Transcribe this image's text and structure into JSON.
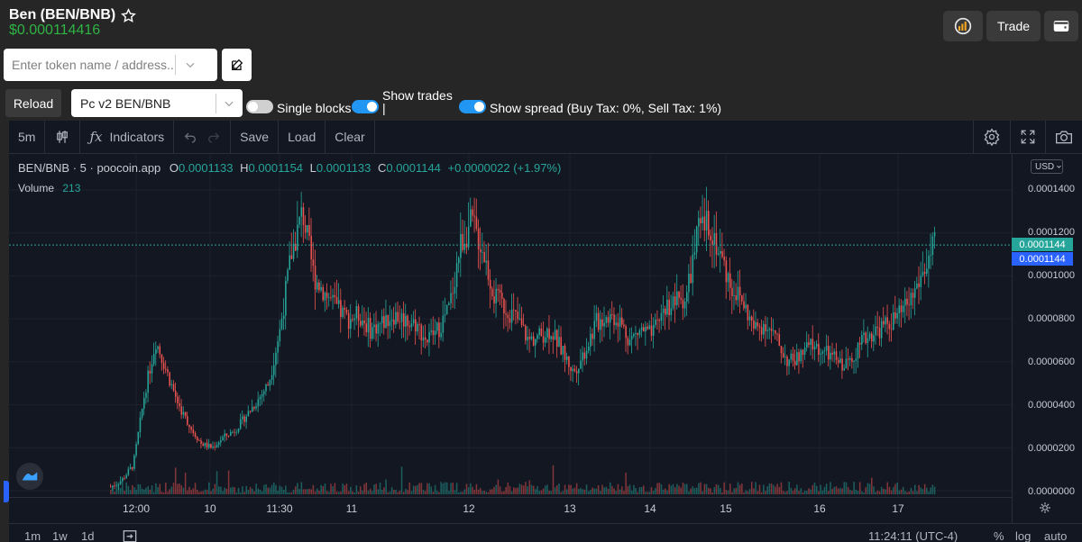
{
  "header": {
    "title": "Ben (BEN/BNB)",
    "price": "$0.000114416",
    "trade_label": "Trade"
  },
  "search": {
    "placeholder": "Enter token name / address..."
  },
  "controls": {
    "reload_label": "Reload",
    "pool_value": "Pc v2 BEN/BNB",
    "single_blocks_label": "Single blocks",
    "single_blocks_on": false,
    "show_trades_label": "Show trades",
    "show_trades_suffix": "|",
    "show_trades_on": true,
    "show_spread_label": "Show spread (Buy Tax: 0%, Sell Tax: 1%)",
    "show_spread_on": true
  },
  "toolbar": {
    "interval": "5m",
    "indicators_label": "Indicators",
    "save_label": "Save",
    "load_label": "Load",
    "clear_label": "Clear"
  },
  "legend": {
    "symbol": "BEN/BNB",
    "interval": "5",
    "source": "poocoin.app",
    "o_label": "O",
    "o": "0.0001133",
    "h_label": "H",
    "h": "0.0001154",
    "l_label": "L",
    "l": "0.0001133",
    "c_label": "C",
    "c": "0.0001144",
    "change": "+0.0000022 (+1.97%)",
    "volume_label": "Volume",
    "volume": "213"
  },
  "currency": "USD",
  "price_tags": [
    "0.0001144",
    "0.0001144"
  ],
  "bottom_bar": {
    "ranges": [
      "1m",
      "1w",
      "1d"
    ],
    "time": "11:24:11 (UTC-4)",
    "pct": "%",
    "log": "log",
    "auto": "auto"
  },
  "colors": {
    "up": "#26a69a",
    "down": "#ef5350",
    "price_positive": "#2fb344",
    "toggle_on": "#2196f3",
    "tag_green": "#26a69a",
    "tag_blue": "#2962ff"
  },
  "chart_data": {
    "type": "candlestick",
    "x_ticks": [
      "12:00",
      "10",
      "11:30",
      "11",
      "12",
      "13",
      "14",
      "15",
      "16",
      "17"
    ],
    "y_ticks": [
      "0.0001400",
      "0.0001200",
      "0.0001000",
      "0.0000800",
      "0.0000600",
      "0.0000400",
      "0.0000200",
      "0.0000000"
    ],
    "ylim": [
      0,
      0.00014
    ],
    "last_price": 0.0001144,
    "price_series": [
      1.8e-06,
      5e-06,
      1.2e-05,
      4.5e-05,
      7e-05,
      5.5e-05,
      4e-05,
      3e-05,
      2.2e-05,
      2e-05,
      2.5e-05,
      2.8e-05,
      3.5e-05,
      4.2e-05,
      5e-05,
      7.5e-05,
      0.00011,
      0.00013,
      0.0001,
      9.2e-05,
      8.5e-05,
      8e-05,
      8.2e-05,
      7.5e-05,
      7.8e-05,
      8.2e-05,
      8e-05,
      7.8e-05,
      7e-05,
      7.5e-05,
      8.5e-05,
      0.000115,
      0.000125,
      0.000112,
      9e-05,
      8.5e-05,
      8e-05,
      7e-05,
      7.2e-05,
      7.5e-05,
      6.5e-05,
      5.5e-05,
      6.5e-05,
      7.8e-05,
      8.2e-05,
      8e-05,
      7e-05,
      7.5e-05,
      7.2e-05,
      8.5e-05,
      8.8e-05,
      9e-05,
      0.00012,
      0.000125,
      0.00011,
      9.5e-05,
      8.8e-05,
      7.5e-05,
      7.8e-05,
      7e-05,
      6e-05,
      6.2e-05,
      6.8e-05,
      6.5e-05,
      6.2e-05,
      5.8e-05,
      6.5e-05,
      7.2e-05,
      7.5e-05,
      7.8e-05,
      8.2e-05,
      9e-05,
      0.000102,
      0.000114
    ]
  }
}
